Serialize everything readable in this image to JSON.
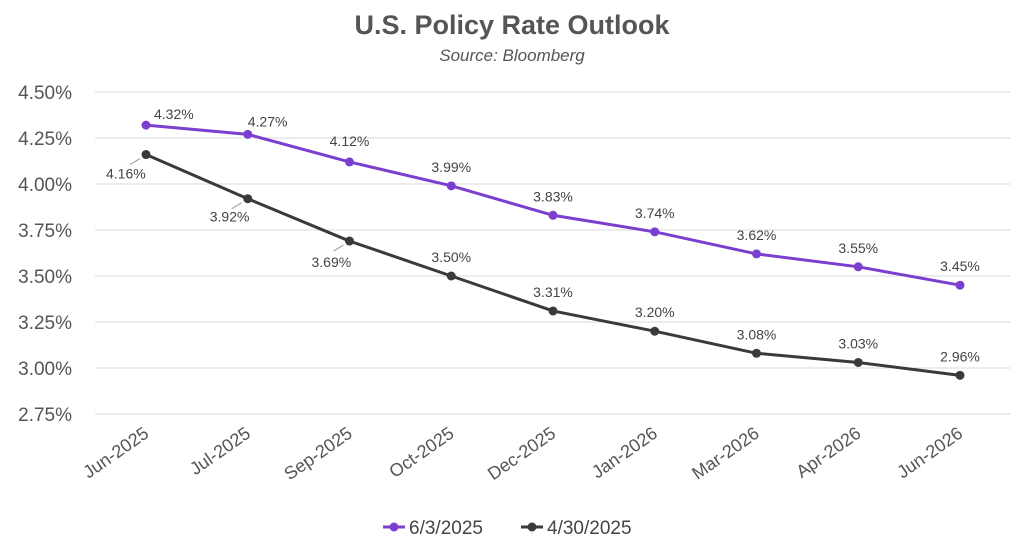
{
  "chart_data": {
    "type": "line",
    "title": "U.S. Policy Rate Outlook",
    "subtitle": "Source: Bloomberg",
    "categories": [
      "Jun-2025",
      "Jul-2025",
      "Sep-2025",
      "Oct-2025",
      "Dec-2025",
      "Jan-2026",
      "Mar-2026",
      "Apr-2026",
      "Jun-2026"
    ],
    "y_ticks": [
      "4.50%",
      "4.25%",
      "4.00%",
      "3.75%",
      "3.50%",
      "3.25%",
      "3.00%",
      "2.75%"
    ],
    "y_tick_values": [
      4.5,
      4.25,
      4.0,
      3.75,
      3.5,
      3.25,
      3.0,
      2.75
    ],
    "ylim": [
      2.75,
      4.5
    ],
    "grid": true,
    "legend_position": "bottom",
    "series": [
      {
        "name": "6/3/2025",
        "color": "#7b3fd0",
        "values": [
          4.32,
          4.27,
          4.12,
          3.99,
          3.83,
          3.74,
          3.62,
          3.55,
          3.45
        ],
        "labels": [
          "4.32%",
          "4.27%",
          "4.12%",
          "3.99%",
          "3.83%",
          "3.74%",
          "3.62%",
          "3.55%",
          "3.45%"
        ]
      },
      {
        "name": "4/30/2025",
        "color": "#3a3a3a",
        "values": [
          4.16,
          3.92,
          3.69,
          3.5,
          3.31,
          3.2,
          3.08,
          3.03,
          2.96
        ],
        "labels": [
          "4.16%",
          "3.92%",
          "3.69%",
          "3.50%",
          "3.31%",
          "3.20%",
          "3.08%",
          "3.03%",
          "2.96%"
        ]
      }
    ]
  }
}
